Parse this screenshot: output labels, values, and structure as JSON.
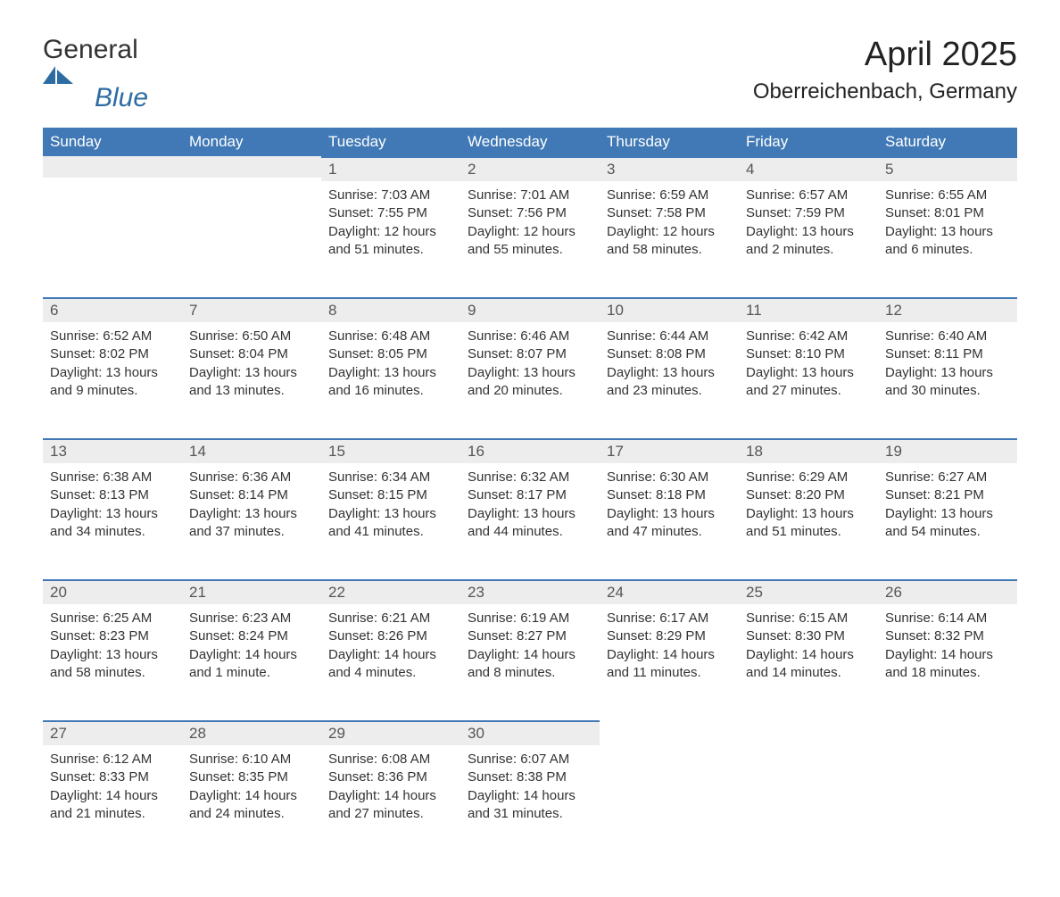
{
  "logo": {
    "brand_general": "General",
    "brand_blue": "Blue",
    "brand_color": "#2d6ca2"
  },
  "title": "April 2025",
  "location": "Oberreichenbach, Germany",
  "colors": {
    "header_bg": "#4079b5",
    "header_text": "#ffffff",
    "daynum_bg": "#ededed",
    "daynum_border": "#4079b5",
    "body_text": "#333333"
  },
  "weekdays": [
    "Sunday",
    "Monday",
    "Tuesday",
    "Wednesday",
    "Thursday",
    "Friday",
    "Saturday"
  ],
  "weeks": [
    [
      null,
      null,
      {
        "n": "1",
        "sunrise": "Sunrise: 7:03 AM",
        "sunset": "Sunset: 7:55 PM",
        "daylight": "Daylight: 12 hours and 51 minutes."
      },
      {
        "n": "2",
        "sunrise": "Sunrise: 7:01 AM",
        "sunset": "Sunset: 7:56 PM",
        "daylight": "Daylight: 12 hours and 55 minutes."
      },
      {
        "n": "3",
        "sunrise": "Sunrise: 6:59 AM",
        "sunset": "Sunset: 7:58 PM",
        "daylight": "Daylight: 12 hours and 58 minutes."
      },
      {
        "n": "4",
        "sunrise": "Sunrise: 6:57 AM",
        "sunset": "Sunset: 7:59 PM",
        "daylight": "Daylight: 13 hours and 2 minutes."
      },
      {
        "n": "5",
        "sunrise": "Sunrise: 6:55 AM",
        "sunset": "Sunset: 8:01 PM",
        "daylight": "Daylight: 13 hours and 6 minutes."
      }
    ],
    [
      {
        "n": "6",
        "sunrise": "Sunrise: 6:52 AM",
        "sunset": "Sunset: 8:02 PM",
        "daylight": "Daylight: 13 hours and 9 minutes."
      },
      {
        "n": "7",
        "sunrise": "Sunrise: 6:50 AM",
        "sunset": "Sunset: 8:04 PM",
        "daylight": "Daylight: 13 hours and 13 minutes."
      },
      {
        "n": "8",
        "sunrise": "Sunrise: 6:48 AM",
        "sunset": "Sunset: 8:05 PM",
        "daylight": "Daylight: 13 hours and 16 minutes."
      },
      {
        "n": "9",
        "sunrise": "Sunrise: 6:46 AM",
        "sunset": "Sunset: 8:07 PM",
        "daylight": "Daylight: 13 hours and 20 minutes."
      },
      {
        "n": "10",
        "sunrise": "Sunrise: 6:44 AM",
        "sunset": "Sunset: 8:08 PM",
        "daylight": "Daylight: 13 hours and 23 minutes."
      },
      {
        "n": "11",
        "sunrise": "Sunrise: 6:42 AM",
        "sunset": "Sunset: 8:10 PM",
        "daylight": "Daylight: 13 hours and 27 minutes."
      },
      {
        "n": "12",
        "sunrise": "Sunrise: 6:40 AM",
        "sunset": "Sunset: 8:11 PM",
        "daylight": "Daylight: 13 hours and 30 minutes."
      }
    ],
    [
      {
        "n": "13",
        "sunrise": "Sunrise: 6:38 AM",
        "sunset": "Sunset: 8:13 PM",
        "daylight": "Daylight: 13 hours and 34 minutes."
      },
      {
        "n": "14",
        "sunrise": "Sunrise: 6:36 AM",
        "sunset": "Sunset: 8:14 PM",
        "daylight": "Daylight: 13 hours and 37 minutes."
      },
      {
        "n": "15",
        "sunrise": "Sunrise: 6:34 AM",
        "sunset": "Sunset: 8:15 PM",
        "daylight": "Daylight: 13 hours and 41 minutes."
      },
      {
        "n": "16",
        "sunrise": "Sunrise: 6:32 AM",
        "sunset": "Sunset: 8:17 PM",
        "daylight": "Daylight: 13 hours and 44 minutes."
      },
      {
        "n": "17",
        "sunrise": "Sunrise: 6:30 AM",
        "sunset": "Sunset: 8:18 PM",
        "daylight": "Daylight: 13 hours and 47 minutes."
      },
      {
        "n": "18",
        "sunrise": "Sunrise: 6:29 AM",
        "sunset": "Sunset: 8:20 PM",
        "daylight": "Daylight: 13 hours and 51 minutes."
      },
      {
        "n": "19",
        "sunrise": "Sunrise: 6:27 AM",
        "sunset": "Sunset: 8:21 PM",
        "daylight": "Daylight: 13 hours and 54 minutes."
      }
    ],
    [
      {
        "n": "20",
        "sunrise": "Sunrise: 6:25 AM",
        "sunset": "Sunset: 8:23 PM",
        "daylight": "Daylight: 13 hours and 58 minutes."
      },
      {
        "n": "21",
        "sunrise": "Sunrise: 6:23 AM",
        "sunset": "Sunset: 8:24 PM",
        "daylight": "Daylight: 14 hours and 1 minute."
      },
      {
        "n": "22",
        "sunrise": "Sunrise: 6:21 AM",
        "sunset": "Sunset: 8:26 PM",
        "daylight": "Daylight: 14 hours and 4 minutes."
      },
      {
        "n": "23",
        "sunrise": "Sunrise: 6:19 AM",
        "sunset": "Sunset: 8:27 PM",
        "daylight": "Daylight: 14 hours and 8 minutes."
      },
      {
        "n": "24",
        "sunrise": "Sunrise: 6:17 AM",
        "sunset": "Sunset: 8:29 PM",
        "daylight": "Daylight: 14 hours and 11 minutes."
      },
      {
        "n": "25",
        "sunrise": "Sunrise: 6:15 AM",
        "sunset": "Sunset: 8:30 PM",
        "daylight": "Daylight: 14 hours and 14 minutes."
      },
      {
        "n": "26",
        "sunrise": "Sunrise: 6:14 AM",
        "sunset": "Sunset: 8:32 PM",
        "daylight": "Daylight: 14 hours and 18 minutes."
      }
    ],
    [
      {
        "n": "27",
        "sunrise": "Sunrise: 6:12 AM",
        "sunset": "Sunset: 8:33 PM",
        "daylight": "Daylight: 14 hours and 21 minutes."
      },
      {
        "n": "28",
        "sunrise": "Sunrise: 6:10 AM",
        "sunset": "Sunset: 8:35 PM",
        "daylight": "Daylight: 14 hours and 24 minutes."
      },
      {
        "n": "29",
        "sunrise": "Sunrise: 6:08 AM",
        "sunset": "Sunset: 8:36 PM",
        "daylight": "Daylight: 14 hours and 27 minutes."
      },
      {
        "n": "30",
        "sunrise": "Sunrise: 6:07 AM",
        "sunset": "Sunset: 8:38 PM",
        "daylight": "Daylight: 14 hours and 31 minutes."
      },
      null,
      null,
      null
    ]
  ]
}
